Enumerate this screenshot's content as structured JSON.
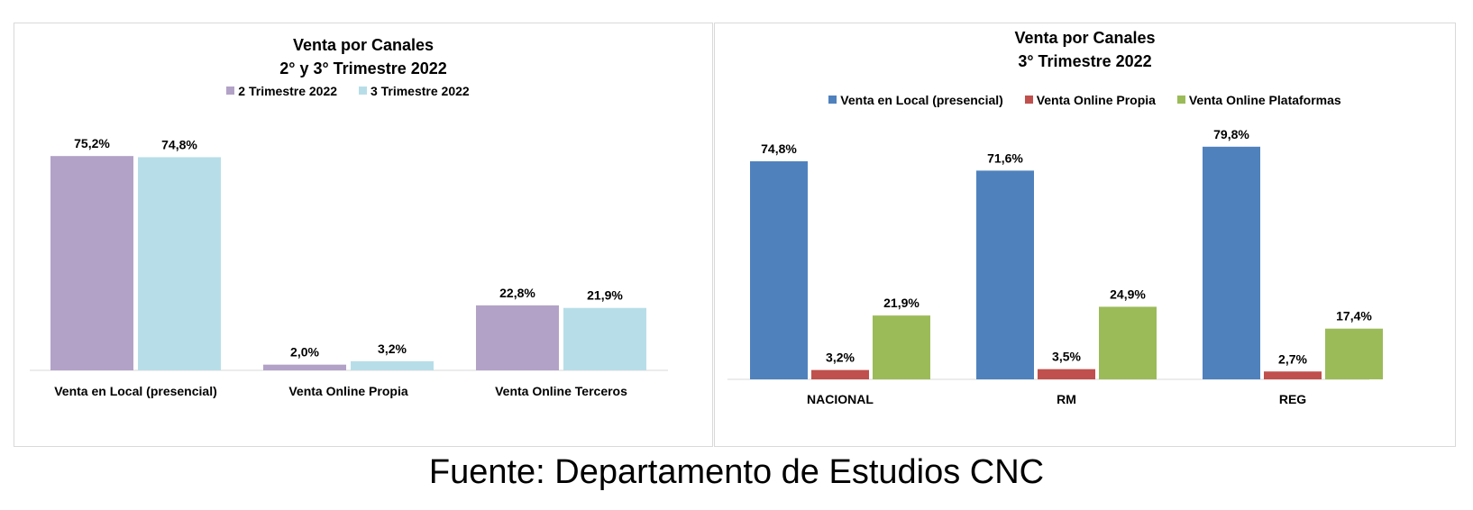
{
  "chart_data": [
    {
      "type": "bar",
      "title_lines": [
        "Venta por Canales",
        "2° y 3° Trimestre 2022"
      ],
      "categories": [
        "Venta en Local (presencial)",
        "Venta  Online Propia",
        "Venta  Online Terceros"
      ],
      "series": [
        {
          "name": "2 Trimestre 2022",
          "color": "#b3a2c7",
          "values": [
            75.2,
            2.0,
            22.8
          ],
          "labels": [
            "75,2%",
            "2,0%",
            "22,8%"
          ]
        },
        {
          "name": "3 Trimestre 2022",
          "color": "#b7dee8",
          "values": [
            74.8,
            3.2,
            21.9
          ],
          "labels": [
            "74,8%",
            "3,2%",
            "21,9%"
          ]
        }
      ],
      "ylim": [
        0,
        80
      ],
      "legend_position": "top",
      "grid": false
    },
    {
      "type": "bar",
      "title_lines": [
        "Venta por Canales",
        "3° Trimestre 2022"
      ],
      "categories": [
        "NACIONAL",
        "RM",
        "REG"
      ],
      "series": [
        {
          "name": "Venta en Local (presencial)",
          "color": "#4f81bd",
          "values": [
            74.8,
            71.6,
            79.8
          ],
          "labels": [
            "74,8%",
            "71,6%",
            "79,8%"
          ]
        },
        {
          "name": "Venta  Online Propia",
          "color": "#c0504d",
          "values": [
            3.2,
            3.5,
            2.7
          ],
          "labels": [
            "3,2%",
            "3,5%",
            "2,7%"
          ]
        },
        {
          "name": "Venta  Online Plataformas",
          "color": "#9bbb59",
          "values": [
            21.9,
            24.9,
            17.4
          ],
          "labels": [
            "21,9%",
            "24,9%",
            "17,4%"
          ]
        }
      ],
      "ylim": [
        0,
        85
      ],
      "legend_position": "top",
      "grid": false
    }
  ],
  "source": "Fuente: Departamento de Estudios CNC"
}
